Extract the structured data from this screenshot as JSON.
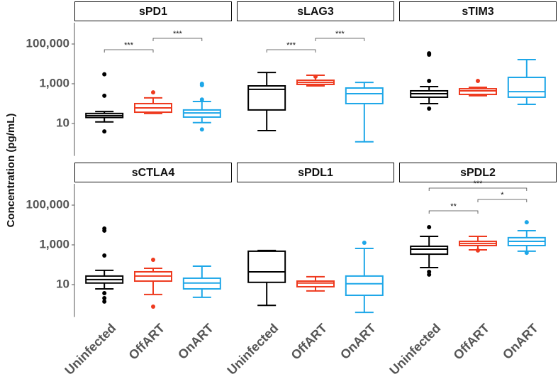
{
  "chart_data": {
    "type": "box",
    "ylabel": "Concentration (pg/mL)",
    "log_y": true,
    "ylim": [
      0.3,
      1000000
    ],
    "yticks": [
      10,
      {
        "value": 1000,
        "label": "1,000"
      },
      {
        "value": 100000,
        "label": "100,000"
      }
    ],
    "categories": [
      "Uninfected",
      "OffART",
      "OnART"
    ],
    "colors": [
      "#000000",
      "#ee3a1f",
      "#1ea7e8"
    ],
    "panels": [
      {
        "title": "sPD1",
        "boxes": [
          {
            "low": 12,
            "q1": 20,
            "median": 25,
            "q3": 32,
            "high": 40,
            "outliers": [
              3000,
              250,
              4
            ]
          },
          {
            "low": 32,
            "q1": 37,
            "median": 61,
            "q3": 100,
            "high": 194,
            "outliers": [
              370
            ]
          },
          {
            "low": 11,
            "q1": 21,
            "median": 34,
            "q3": 48,
            "high": 128,
            "outliers": [
              850,
              1000,
              160,
              5
            ]
          }
        ],
        "significance": [
          {
            "from": 0,
            "to": 1,
            "label": "***"
          },
          {
            "from": 1,
            "to": 2,
            "label": "***"
          }
        ]
      },
      {
        "title": "sLAG3",
        "boxes": [
          {
            "low": 4.4,
            "q1": 48,
            "median": 520,
            "q3": 780,
            "high": 3700,
            "outliers": []
          },
          {
            "low": 780,
            "q1": 920,
            "median": 1170,
            "q3": 1500,
            "high": 2680,
            "outliers": [
              2300
            ]
          },
          {
            "low": 1.2,
            "q1": 100,
            "median": 316,
            "q3": 610,
            "high": 1170,
            "outliers": []
          }
        ],
        "significance": [
          {
            "from": 0,
            "to": 1,
            "label": "***"
          },
          {
            "from": 1,
            "to": 2,
            "label": "***"
          }
        ]
      },
      {
        "title": "sTIM3",
        "boxes": [
          {
            "low": 100,
            "q1": 210,
            "median": 316,
            "q3": 440,
            "high": 720,
            "outliers": [
              29000,
              34000,
              1390,
              56
            ]
          },
          {
            "low": 250,
            "q1": 290,
            "median": 440,
            "q3": 560,
            "high": 660,
            "outliers": [
              1390
            ]
          },
          {
            "low": 92,
            "q1": 210,
            "median": 400,
            "q3": 2090,
            "high": 16400,
            "outliers": []
          }
        ],
        "significance": []
      },
      {
        "title": "sCTLA4",
        "boxes": [
          {
            "low": 6.1,
            "q1": 12,
            "median": 18,
            "q3": 27,
            "high": 52,
            "outliers": [
              5200,
              6600,
              290,
              3.7,
              2.1,
              1.4
            ]
          },
          {
            "low": 3.2,
            "q1": 15,
            "median": 27,
            "q3": 44,
            "high": 66,
            "outliers": [
              178,
              0.78
            ]
          },
          {
            "low": 2.3,
            "q1": 6.1,
            "median": 12,
            "q3": 21,
            "high": 85,
            "outliers": []
          }
        ],
        "significance": []
      },
      {
        "title": "sPDL1",
        "boxes": [
          {
            "low": 0.9,
            "q1": 13,
            "median": 44,
            "q3": 480,
            "high": 520,
            "outliers": []
          },
          {
            "low": 4.8,
            "q1": 7.8,
            "median": 12,
            "q3": 15,
            "high": 25,
            "outliers": []
          },
          {
            "low": 0.4,
            "q1": 2.9,
            "median": 11,
            "q3": 27,
            "high": 660,
            "outliers": [
              1280
            ]
          }
        ],
        "significance": []
      },
      {
        "title": "sPDL2",
        "boxes": [
          {
            "low": 72,
            "q1": 340,
            "median": 610,
            "q3": 850,
            "high": 2680,
            "outliers": [
              7800,
              44,
              32
            ]
          },
          {
            "low": 560,
            "q1": 920,
            "median": 1170,
            "q3": 1500,
            "high": 2680,
            "outliers": [
              520
            ]
          },
          {
            "low": 480,
            "q1": 920,
            "median": 1500,
            "q3": 2300,
            "high": 5200,
            "outliers": [
              13800,
              400
            ]
          }
        ],
        "significance": [
          {
            "from": 0,
            "to": 1,
            "label": "**"
          },
          {
            "from": 1,
            "to": 2,
            "label": "*"
          },
          {
            "from": 0,
            "to": 2,
            "label": "***"
          }
        ]
      }
    ]
  }
}
